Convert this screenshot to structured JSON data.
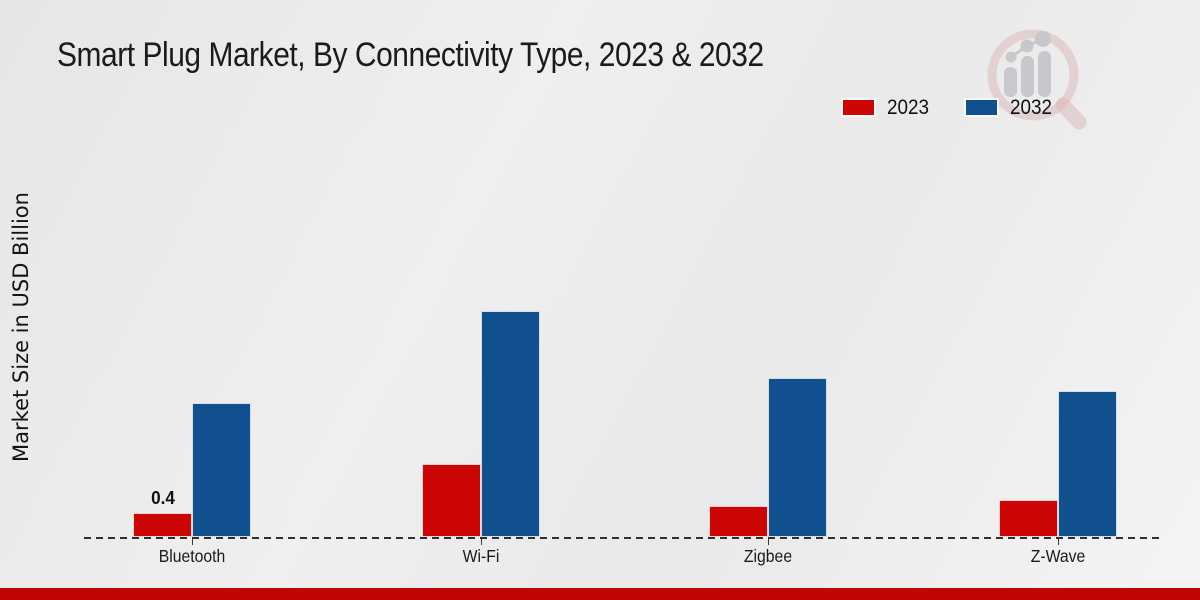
{
  "chart_data": {
    "type": "bar",
    "title": "Smart Plug Market, By Connectivity Type, 2023 & 2032",
    "ylabel": "Market Size in USD Billion",
    "xlabel": "",
    "categories": [
      "Bluetooth",
      "Wi-Fi",
      "Zigbee",
      "Z-Wave"
    ],
    "series": [
      {
        "name": "2023",
        "color": "#cc0505",
        "values": [
          0.4,
          1.2,
          0.5,
          0.6
        ],
        "labels": [
          "0.4",
          "",
          "",
          ""
        ]
      },
      {
        "name": "2032",
        "color": "#11508f",
        "values": [
          2.2,
          3.7,
          2.6,
          2.4
        ],
        "labels": [
          "",
          "",
          "",
          ""
        ]
      }
    ],
    "ylim": [
      0,
      4.2
    ],
    "grid": false,
    "y_tick_labels_shown": false,
    "legend_position": "top-right",
    "baseline_style": "dashed"
  },
  "icons": {
    "watermark_icon": "magnifier-growth-bars-logo"
  },
  "colors": {
    "accent_strip": "#c10505",
    "axis_line": "#2f2f2f",
    "watermark_ring": "#dcb9b9",
    "watermark_bars": "#c7c7cb"
  }
}
